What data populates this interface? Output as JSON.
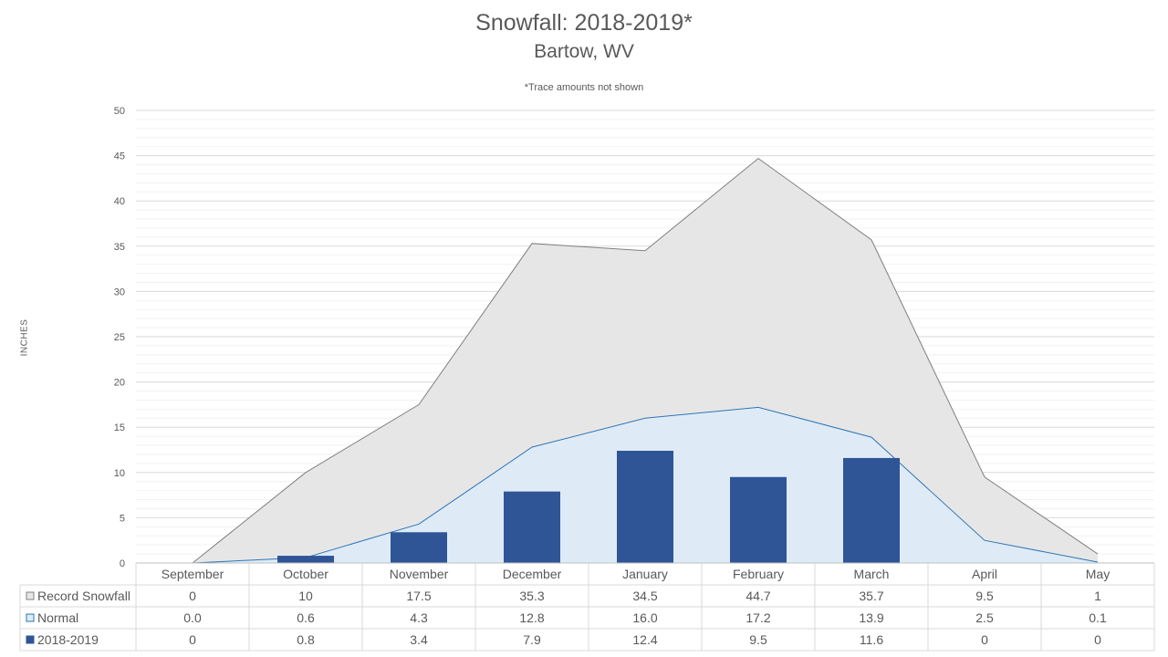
{
  "chart_data": {
    "type": "bar",
    "title": "Snowfall: 2018-2019*",
    "subtitle": "Bartow, WV",
    "note": "*Trace amounts not shown",
    "ylabel": "INCHES",
    "xlabel": "",
    "ylim": [
      0,
      50
    ],
    "yticks": [
      0,
      5,
      10,
      15,
      20,
      25,
      30,
      35,
      40,
      45,
      50
    ],
    "grid": true,
    "legend_placement": "data-table-left",
    "categories": [
      "September",
      "October",
      "November",
      "December",
      "January",
      "February",
      "March",
      "April",
      "May"
    ],
    "series": [
      {
        "name": "Record Snowfall",
        "type": "area",
        "color": "#e7e6e6",
        "line_color": "#808080",
        "values": [
          0,
          10,
          17.5,
          35.3,
          34.5,
          44.7,
          35.7,
          9.5,
          1
        ],
        "labels": [
          "0",
          "10",
          "17.5",
          "35.3",
          "34.5",
          "44.7",
          "35.7",
          "9.5",
          "1"
        ]
      },
      {
        "name": "Normal",
        "type": "area",
        "color": "#deebf7",
        "line_color": "#2e75b6",
        "values": [
          0.0,
          0.6,
          4.3,
          12.8,
          16.0,
          17.2,
          13.9,
          2.5,
          0.1
        ],
        "labels": [
          "0.0",
          "0.6",
          "4.3",
          "12.8",
          "16.0",
          "17.2",
          "13.9",
          "2.5",
          "0.1"
        ]
      },
      {
        "name": "2018-2019",
        "type": "bar",
        "color": "#2f5597",
        "values": [
          0,
          0.8,
          3.4,
          7.9,
          12.4,
          9.5,
          11.6,
          0,
          0
        ],
        "labels": [
          "0",
          "0.8",
          "3.4",
          "7.9",
          "12.4",
          "9.5",
          "11.6",
          "0",
          "0"
        ]
      }
    ]
  }
}
